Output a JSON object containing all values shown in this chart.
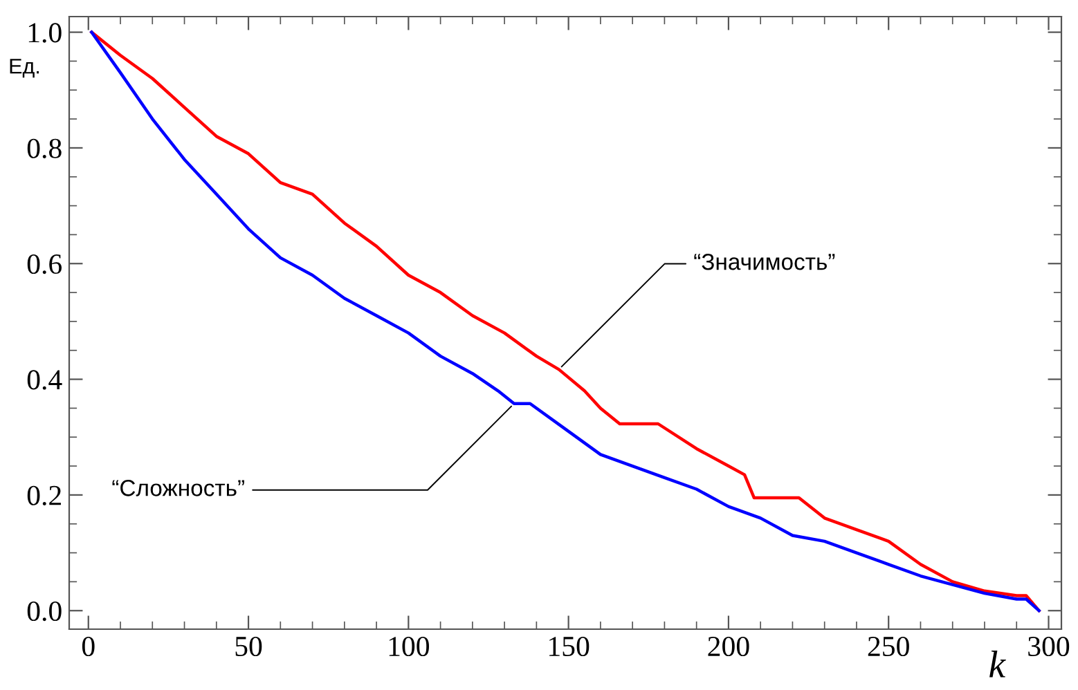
{
  "chart_data": {
    "type": "line",
    "xlabel": "k",
    "ylabel": "Ед.",
    "xlim": [
      -6,
      304
    ],
    "ylim": [
      -0.032,
      1.027
    ],
    "xticks": [
      0,
      {
        "value": 10,
        "label": null
      },
      {
        "value": 20,
        "label": null
      },
      {
        "value": 30,
        "label": null
      },
      {
        "value": 40,
        "label": null
      },
      50,
      {
        "value": 60,
        "label": null
      },
      {
        "value": 70,
        "label": null
      },
      {
        "value": 80,
        "label": null
      },
      {
        "value": 90,
        "label": null
      },
      100,
      {
        "value": 110,
        "label": null
      },
      {
        "value": 120,
        "label": null
      },
      {
        "value": 130,
        "label": null
      },
      {
        "value": 140,
        "label": null
      },
      150,
      {
        "value": 160,
        "label": null
      },
      {
        "value": 170,
        "label": null
      },
      {
        "value": 180,
        "label": null
      },
      {
        "value": 190,
        "label": null
      },
      200,
      {
        "value": 210,
        "label": null
      },
      {
        "value": 220,
        "label": null
      },
      {
        "value": 230,
        "label": null
      },
      {
        "value": 240,
        "label": null
      },
      250,
      {
        "value": 260,
        "label": null
      },
      {
        "value": 270,
        "label": null
      },
      {
        "value": 280,
        "label": null
      },
      {
        "value": 290,
        "label": null
      },
      300
    ],
    "yticks": [
      {
        "value": 0,
        "label": "0.0"
      },
      {
        "value": 0.05,
        "label": null
      },
      {
        "value": 0.1,
        "label": null
      },
      {
        "value": 0.15,
        "label": null
      },
      {
        "value": 0.2,
        "label": "0.2"
      },
      {
        "value": 0.25,
        "label": null
      },
      {
        "value": 0.3,
        "label": null
      },
      {
        "value": 0.35,
        "label": null
      },
      {
        "value": 0.4,
        "label": "0.4"
      },
      {
        "value": 0.45,
        "label": null
      },
      {
        "value": 0.5,
        "label": null
      },
      {
        "value": 0.55,
        "label": null
      },
      {
        "value": 0.6,
        "label": "0.6"
      },
      {
        "value": 0.65,
        "label": null
      },
      {
        "value": 0.7,
        "label": null
      },
      {
        "value": 0.75,
        "label": null
      },
      {
        "value": 0.8,
        "label": "0.8"
      },
      {
        "value": 0.85,
        "label": null
      },
      {
        "value": 0.9,
        "label": null
      },
      {
        "value": 0.95,
        "label": null
      },
      {
        "value": 1.0,
        "label": "1.0"
      }
    ],
    "grid": false,
    "legend": false,
    "line_style": "solid",
    "marker": "none",
    "series": [
      {
        "color": "#ff0000",
        "x": [
          1,
          10,
          20,
          30,
          40,
          50,
          60,
          70,
          80,
          90,
          100,
          110,
          120,
          130,
          140,
          147,
          155,
          160,
          166,
          178,
          190,
          200,
          205,
          208,
          222,
          230,
          240,
          250,
          260,
          270,
          280,
          290,
          293,
          297
        ],
        "values": [
          1.0,
          0.96,
          0.92,
          0.87,
          0.82,
          0.79,
          0.74,
          0.72,
          0.67,
          0.63,
          0.58,
          0.55,
          0.51,
          0.48,
          0.44,
          0.417,
          0.38,
          0.35,
          0.323,
          0.323,
          0.28,
          0.25,
          0.235,
          0.195,
          0.195,
          0.16,
          0.14,
          0.12,
          0.08,
          0.05,
          0.034,
          0.026,
          0.026,
          0.0
        ]
      },
      {
        "color": "#0000ff",
        "x": [
          1,
          10,
          20,
          30,
          40,
          50,
          60,
          70,
          80,
          90,
          100,
          110,
          120,
          128,
          133,
          138,
          150,
          160,
          170,
          180,
          190,
          200,
          210,
          220,
          230,
          240,
          250,
          260,
          270,
          280,
          290,
          293,
          297
        ],
        "values": [
          1.0,
          0.93,
          0.85,
          0.78,
          0.72,
          0.66,
          0.61,
          0.58,
          0.54,
          0.51,
          0.48,
          0.44,
          0.41,
          0.38,
          0.358,
          0.358,
          0.31,
          0.27,
          0.25,
          0.23,
          0.21,
          0.18,
          0.16,
          0.13,
          0.12,
          0.1,
          0.08,
          0.06,
          0.045,
          0.03,
          0.02,
          0.02,
          0.0
        ]
      }
    ],
    "annotations": [
      {
        "text": "“Значимость”",
        "x": 147,
        "y": 0.417
      },
      {
        "text": "“Сложность”",
        "x": 133,
        "y": 0.358
      }
    ]
  }
}
